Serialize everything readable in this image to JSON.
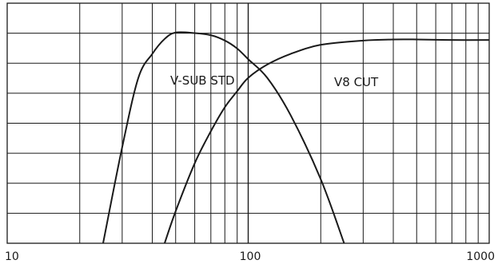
{
  "chart_data": {
    "type": "line",
    "title": "",
    "xlabel": "",
    "ylabel": "",
    "x_scale": "log",
    "xlim": [
      10,
      1000
    ],
    "ylim": [
      -40,
      5
    ],
    "x_tick_labels": [
      "10",
      "100",
      "1000"
    ],
    "x_tick_values": [
      10,
      100,
      1000
    ],
    "horizontal_grid_lines": 8,
    "grid": true,
    "series": [
      {
        "name": "V-SUB STD",
        "points": [
          [
            25,
            -40
          ],
          [
            30,
            -22
          ],
          [
            35,
            -9
          ],
          [
            40,
            -4.5
          ],
          [
            45,
            -1.7
          ],
          [
            50,
            -0.5
          ],
          [
            60,
            -0.6
          ],
          [
            70,
            -1
          ],
          [
            80,
            -2
          ],
          [
            90,
            -3.5
          ],
          [
            100,
            -5.5
          ],
          [
            120,
            -9
          ],
          [
            150,
            -16
          ],
          [
            200,
            -28
          ],
          [
            250,
            -40
          ]
        ]
      },
      {
        "name": "V8 CUT",
        "points": [
          [
            45,
            -40
          ],
          [
            50,
            -34
          ],
          [
            60,
            -25
          ],
          [
            70,
            -19
          ],
          [
            80,
            -14.5
          ],
          [
            90,
            -11.5
          ],
          [
            100,
            -9
          ],
          [
            120,
            -6.5
          ],
          [
            150,
            -4.5
          ],
          [
            200,
            -2.8
          ],
          [
            300,
            -2
          ],
          [
            400,
            -1.8
          ],
          [
            500,
            -1.8
          ],
          [
            700,
            -1.9
          ],
          [
            1000,
            -1.9
          ]
        ]
      }
    ],
    "series_label_text": [
      "V-SUB STD",
      "V8 CUT"
    ],
    "line_color": "#1a1a1a",
    "grid_color": "#1a1a1a"
  }
}
